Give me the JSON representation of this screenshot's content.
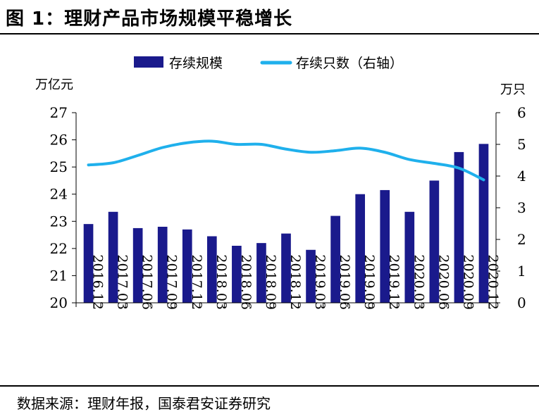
{
  "header": {
    "title": "图 1：理财产品市场规模平稳增长"
  },
  "footer": {
    "source": "数据来源：理财年报，国泰君安证券研究"
  },
  "chart_data": {
    "type": "bar",
    "categories": [
      "2016.12",
      "2017.03",
      "2017.06",
      "2017.09",
      "2017.12",
      "2018.03",
      "2018.06",
      "2018.09",
      "2018.12",
      "2019.03",
      "2019.06",
      "2019.09",
      "2019.12",
      "2020.03",
      "2020.06",
      "2020.09",
      "2020.12"
    ],
    "y_left_unit": "万亿元",
    "y_right_unit": "万只",
    "ylim_left": [
      20,
      27
    ],
    "ylim_right": [
      0,
      6
    ],
    "yticks_left": [
      20,
      21,
      22,
      23,
      24,
      25,
      26,
      27
    ],
    "yticks_right": [
      0,
      1,
      2,
      3,
      4,
      5,
      6
    ],
    "grid": false,
    "legend_position": "top",
    "series": [
      {
        "name": "存续规模",
        "type": "bar",
        "axis": "left",
        "color": "#1a1a8c",
        "values": [
          22.9,
          23.35,
          22.75,
          22.8,
          22.7,
          22.45,
          22.1,
          22.2,
          22.55,
          21.95,
          23.2,
          24.0,
          24.15,
          23.35,
          24.5,
          25.55,
          25.85
        ]
      },
      {
        "name": "存续只数（右轴）",
        "type": "line",
        "axis": "right",
        "color": "#1fb0ec",
        "values": [
          4.35,
          4.42,
          4.65,
          4.9,
          5.05,
          5.1,
          5.0,
          5.0,
          4.85,
          4.75,
          4.8,
          4.88,
          4.75,
          4.52,
          4.4,
          4.25,
          3.88
        ]
      }
    ]
  }
}
